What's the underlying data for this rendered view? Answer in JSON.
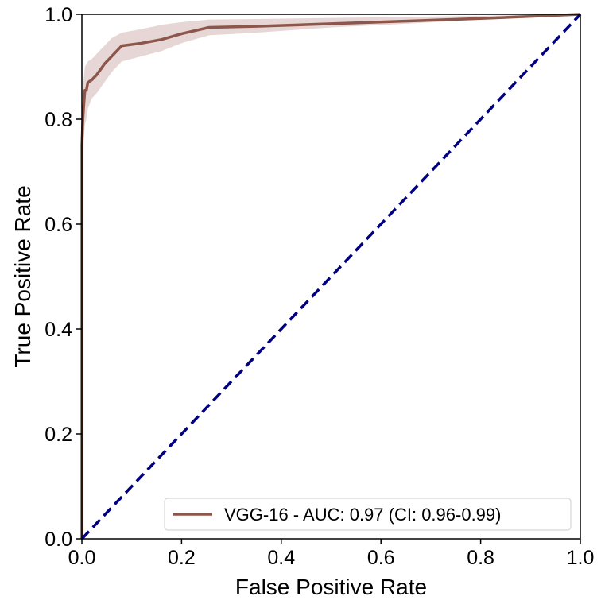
{
  "chart_data": {
    "type": "line",
    "xlabel": "False Positive Rate",
    "ylabel": "True Positive Rate",
    "xlim": [
      0.0,
      1.0
    ],
    "ylim": [
      0.0,
      1.0
    ],
    "xticks": [
      "0.0",
      "0.2",
      "0.4",
      "0.6",
      "0.8",
      "1.0"
    ],
    "yticks": [
      "0.0",
      "0.2",
      "0.4",
      "0.6",
      "0.8",
      "1.0"
    ],
    "grid": false,
    "legend_position": "lower-right",
    "series": [
      {
        "name": "VGG-16 - AUC: 0.97 (CI: 0.96-0.99)",
        "color": "#8c564b",
        "band_color": "#e3d3d2",
        "x": [
          0.0,
          0.0,
          0.0,
          0.002,
          0.004,
          0.006,
          0.009,
          0.012,
          0.02,
          0.03,
          0.045,
          0.06,
          0.08,
          0.12,
          0.16,
          0.2,
          0.255,
          0.35,
          0.5,
          0.65,
          0.8,
          0.9,
          1.0
        ],
        "y": [
          0.0,
          0.5,
          0.75,
          0.8,
          0.83,
          0.855,
          0.855,
          0.87,
          0.875,
          0.885,
          0.905,
          0.92,
          0.94,
          0.945,
          0.952,
          0.963,
          0.975,
          0.977,
          0.982,
          0.987,
          0.992,
          0.996,
          1.0
        ],
        "band_lower": [
          0.0,
          0.45,
          0.7,
          0.73,
          0.76,
          0.79,
          0.8,
          0.82,
          0.84,
          0.85,
          0.87,
          0.89,
          0.91,
          0.92,
          0.93,
          0.945,
          0.96,
          0.965,
          0.975,
          0.982,
          0.99,
          0.995,
          1.0
        ],
        "band_upper": [
          0.0,
          0.6,
          0.83,
          0.86,
          0.88,
          0.9,
          0.905,
          0.91,
          0.915,
          0.925,
          0.94,
          0.955,
          0.965,
          0.972,
          0.98,
          0.985,
          0.99,
          0.991,
          0.993,
          0.995,
          0.997,
          0.999,
          1.0
        ]
      }
    ],
    "reference_line": {
      "x": [
        0.0,
        1.0
      ],
      "y": [
        0.0,
        1.0
      ],
      "color": "#000080",
      "style": "dashed"
    }
  }
}
